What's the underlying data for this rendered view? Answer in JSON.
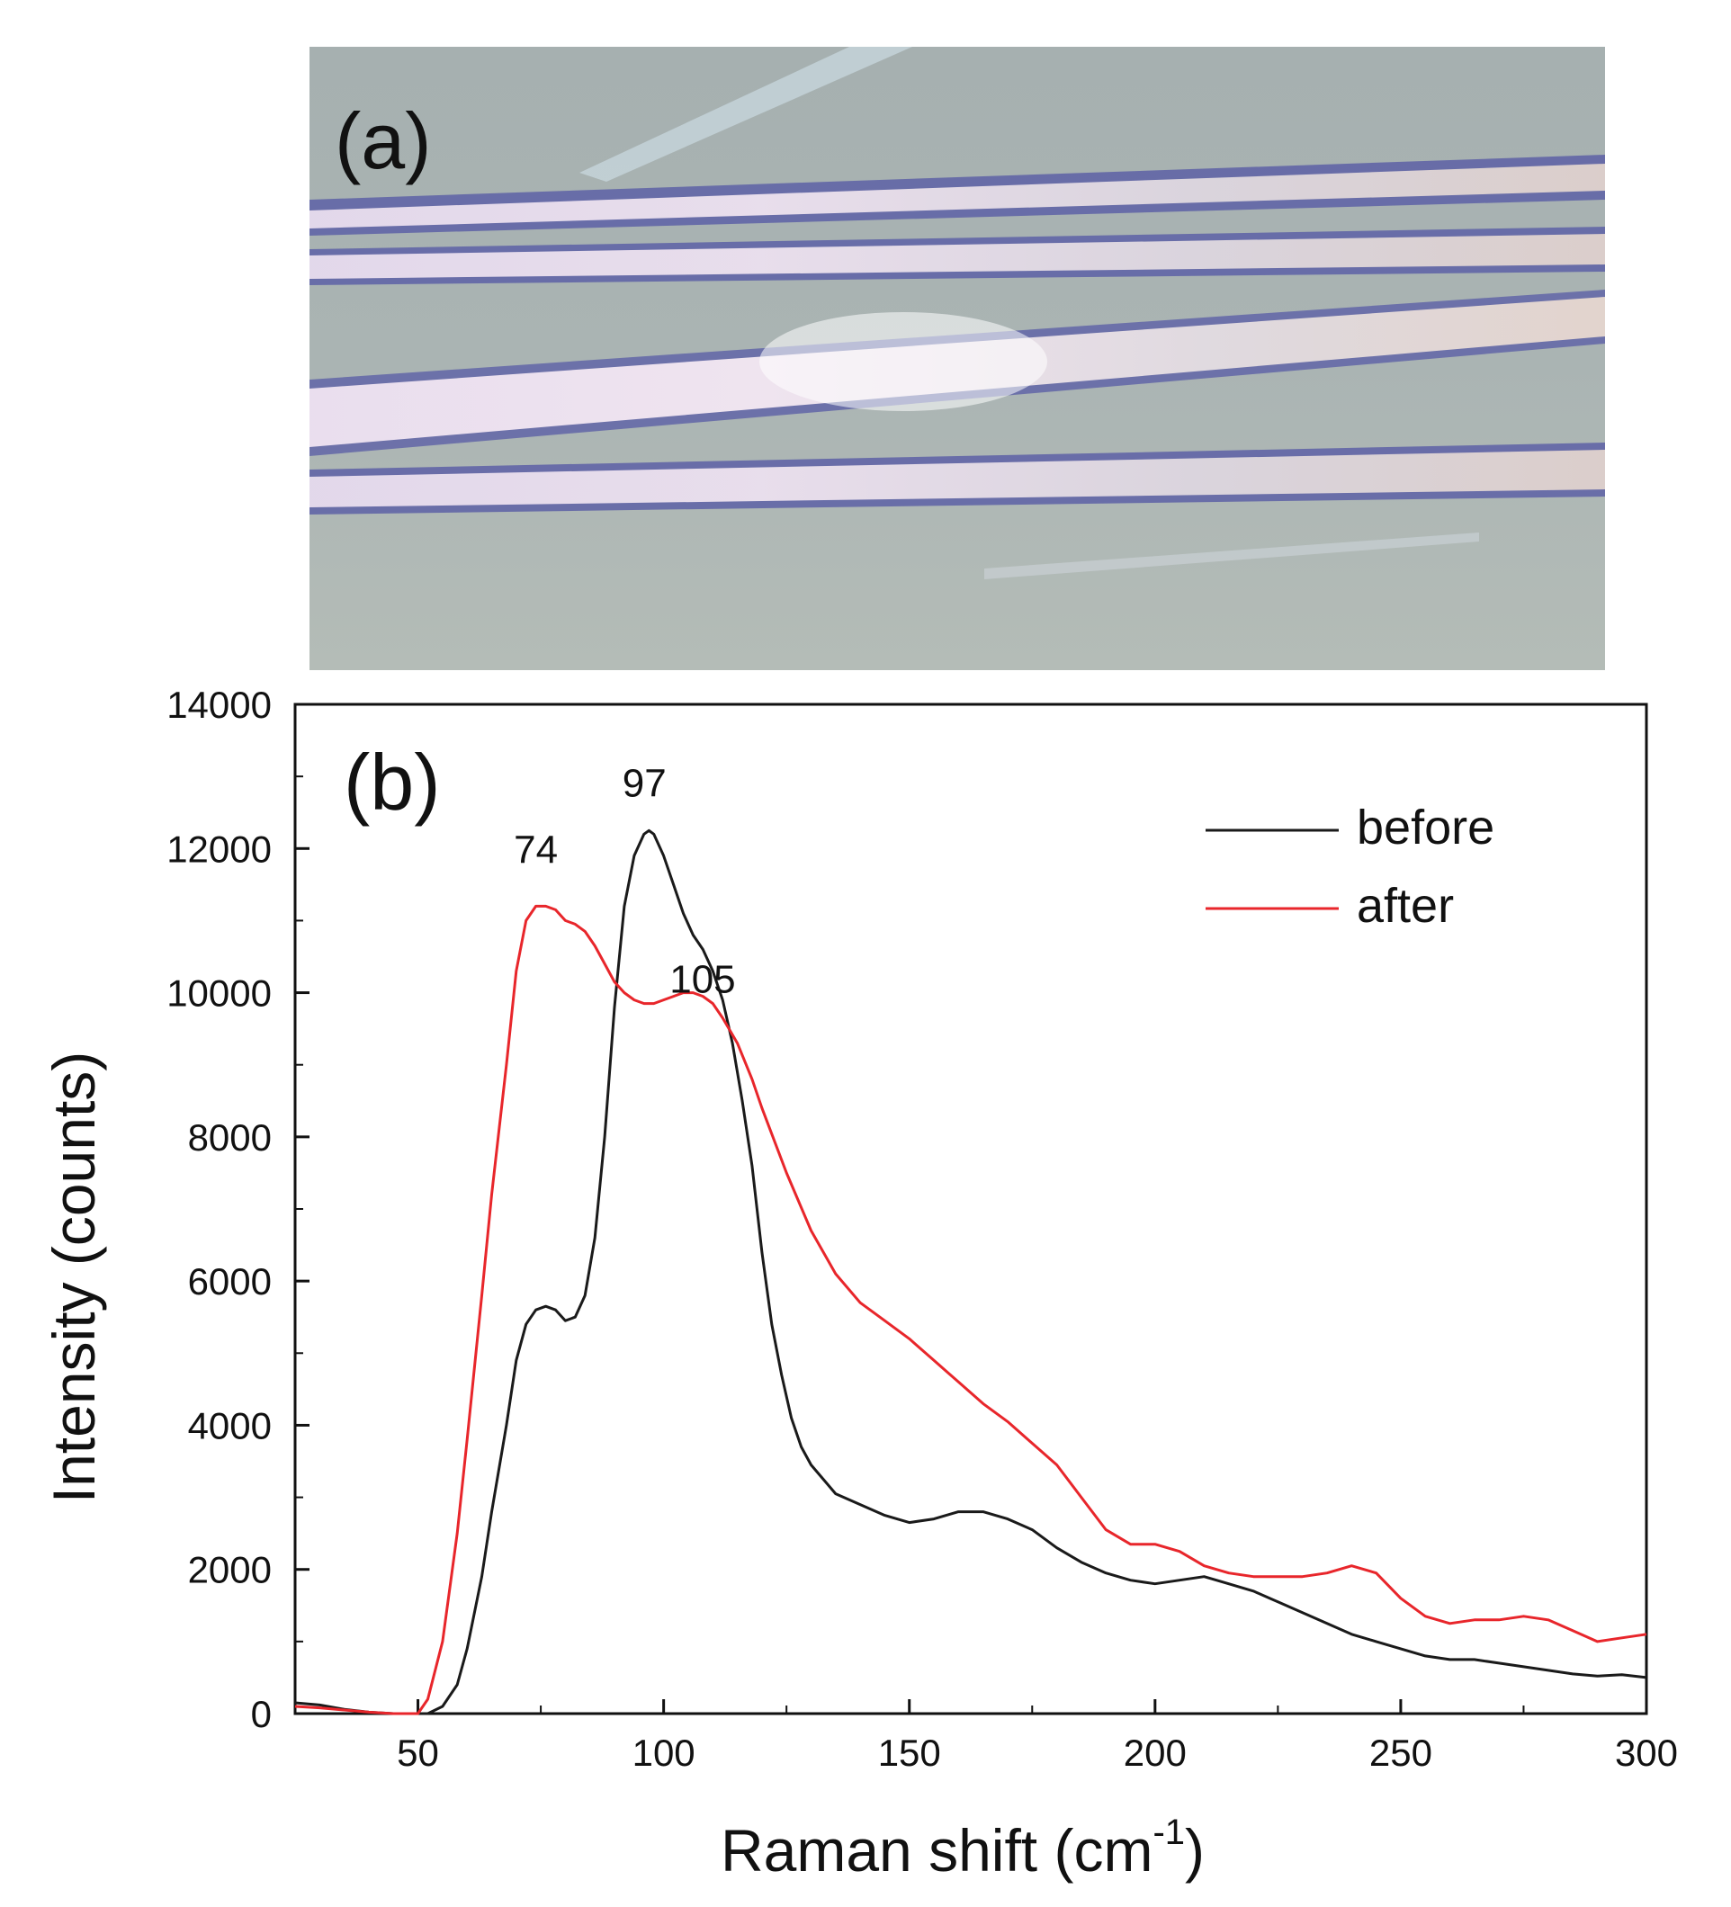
{
  "panel_a": {
    "label": "(a)",
    "description_colors": {
      "background": "#a9b3b2",
      "stripe": "#e9d8ea",
      "edge": "#5b5fa8"
    }
  },
  "chart_data": {
    "type": "line",
    "panel_label": "(b)",
    "title": "",
    "xlabel": "Raman shift (cm",
    "xlabel_superscript": "-1",
    "xlabel_tail": ")",
    "ylabel": "Intensity (counts)",
    "xlim": [
      25,
      300
    ],
    "ylim": [
      0,
      14000
    ],
    "xticks": [
      50,
      100,
      150,
      200,
      250,
      300
    ],
    "yticks": [
      0,
      2000,
      4000,
      6000,
      8000,
      10000,
      12000,
      14000
    ],
    "grid": false,
    "legend_position": "top-right",
    "series": [
      {
        "name": "before",
        "color": "#1a1a1a",
        "x": [
          25,
          30,
          35,
          40,
          45,
          50,
          52,
          55,
          58,
          60,
          63,
          65,
          68,
          70,
          72,
          74,
          76,
          78,
          80,
          82,
          84,
          86,
          88,
          90,
          92,
          94,
          96,
          97,
          98,
          100,
          102,
          104,
          106,
          108,
          110,
          112,
          114,
          116,
          118,
          120,
          122,
          124,
          126,
          128,
          130,
          135,
          140,
          145,
          150,
          155,
          160,
          165,
          170,
          175,
          180,
          185,
          190,
          195,
          200,
          205,
          210,
          215,
          220,
          225,
          230,
          235,
          240,
          245,
          250,
          255,
          260,
          265,
          270,
          275,
          280,
          285,
          290,
          295,
          300
        ],
        "y": [
          150,
          120,
          60,
          20,
          0,
          0,
          0,
          100,
          400,
          900,
          1900,
          2800,
          4000,
          4900,
          5400,
          5600,
          5650,
          5600,
          5450,
          5500,
          5800,
          6600,
          8000,
          9800,
          11200,
          11900,
          12200,
          12250,
          12200,
          11900,
          11500,
          11100,
          10800,
          10600,
          10300,
          9900,
          9300,
          8500,
          7600,
          6400,
          5400,
          4700,
          4100,
          3700,
          3450,
          3050,
          2900,
          2750,
          2650,
          2700,
          2800,
          2800,
          2700,
          2550,
          2300,
          2100,
          1950,
          1850,
          1800,
          1850,
          1900,
          1800,
          1700,
          1550,
          1400,
          1250,
          1100,
          1000,
          900,
          800,
          750,
          750,
          700,
          650,
          600,
          550,
          520,
          540,
          500
        ]
      },
      {
        "name": "after",
        "color": "#e8262b",
        "x": [
          25,
          30,
          35,
          40,
          45,
          50,
          52,
          55,
          58,
          60,
          63,
          65,
          68,
          70,
          72,
          74,
          76,
          78,
          80,
          82,
          84,
          86,
          88,
          90,
          92,
          94,
          96,
          98,
          100,
          102,
          104,
          106,
          108,
          110,
          112,
          115,
          118,
          120,
          125,
          130,
          135,
          140,
          145,
          150,
          155,
          160,
          165,
          170,
          175,
          180,
          185,
          190,
          195,
          200,
          205,
          210,
          215,
          220,
          225,
          230,
          235,
          240,
          245,
          250,
          255,
          260,
          265,
          270,
          275,
          280,
          285,
          290,
          295,
          300
        ],
        "y": [
          100,
          80,
          50,
          20,
          0,
          0,
          200,
          1000,
          2500,
          3800,
          5800,
          7200,
          9000,
          10300,
          11000,
          11200,
          11200,
          11150,
          11000,
          10950,
          10850,
          10650,
          10400,
          10150,
          10000,
          9900,
          9850,
          9850,
          9900,
          9950,
          10000,
          10000,
          9950,
          9850,
          9650,
          9300,
          8800,
          8400,
          7500,
          6700,
          6100,
          5700,
          5450,
          5200,
          4900,
          4600,
          4300,
          4050,
          3750,
          3450,
          3000,
          2550,
          2350,
          2350,
          2250,
          2050,
          1950,
          1900,
          1900,
          1900,
          1950,
          2050,
          1950,
          1600,
          1350,
          1250,
          1300,
          1300,
          1350,
          1300,
          1150,
          1000,
          1050,
          1100
        ]
      }
    ],
    "annotations": [
      {
        "text": "74",
        "x": 74,
        "y": 11200
      },
      {
        "text": "97",
        "x": 97,
        "y": 12250
      },
      {
        "text": "105",
        "x": 105,
        "y": 10000
      }
    ]
  }
}
